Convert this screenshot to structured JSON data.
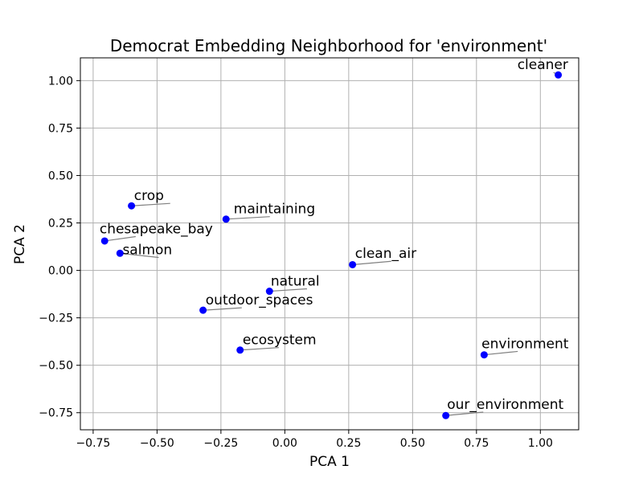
{
  "chart_data": {
    "type": "scatter",
    "title": "Democrat Embedding Neighborhood for 'environment'",
    "xlabel": "PCA 1",
    "ylabel": "PCA 2",
    "xlim": [
      -0.8,
      1.15
    ],
    "ylim": [
      -0.84,
      1.12
    ],
    "xticks": [
      -0.75,
      -0.5,
      -0.25,
      0.0,
      0.25,
      0.5,
      0.75,
      1.0
    ],
    "xtick_labels": [
      "−0.75",
      "−0.50",
      "−0.25",
      "0.00",
      "0.25",
      "0.50",
      "0.75",
      "1.00"
    ],
    "yticks": [
      -0.75,
      -0.5,
      -0.25,
      0.0,
      0.25,
      0.5,
      0.75,
      1.0
    ],
    "ytick_labels": [
      "−0.75",
      "−0.50",
      "−0.25",
      "0.00",
      "0.25",
      "0.50",
      "0.75",
      "1.00"
    ],
    "grid": true,
    "marker_color": "#0000ff",
    "leader_color": "#808080",
    "points": [
      {
        "label": "cleaner",
        "x": 1.07,
        "y": 1.03,
        "label_x": 0.91,
        "label_y": 1.06
      },
      {
        "label": "crop",
        "x": -0.6,
        "y": 0.34,
        "label_x": -0.59,
        "label_y": 0.37
      },
      {
        "label": "maintaining",
        "x": -0.23,
        "y": 0.27,
        "label_x": -0.2,
        "label_y": 0.3
      },
      {
        "label": "chesapeake_bay",
        "x": -0.705,
        "y": 0.155,
        "label_x": -0.725,
        "label_y": 0.195
      },
      {
        "label": "salmon",
        "x": -0.645,
        "y": 0.09,
        "label_x": -0.635,
        "label_y": 0.085
      },
      {
        "label": "clean_air",
        "x": 0.265,
        "y": 0.03,
        "label_x": 0.275,
        "label_y": 0.065
      },
      {
        "label": "natural",
        "x": -0.06,
        "y": -0.11,
        "label_x": -0.055,
        "label_y": -0.08
      },
      {
        "label": "outdoor_spaces",
        "x": -0.32,
        "y": -0.21,
        "label_x": -0.31,
        "label_y": -0.18
      },
      {
        "label": "ecosystem",
        "x": -0.175,
        "y": -0.42,
        "label_x": -0.165,
        "label_y": -0.39
      },
      {
        "label": "environment",
        "x": 0.78,
        "y": -0.445,
        "label_x": 0.77,
        "label_y": -0.41
      },
      {
        "label": "our_environment",
        "x": 0.63,
        "y": -0.765,
        "label_x": 0.635,
        "label_y": -0.73
      }
    ]
  }
}
